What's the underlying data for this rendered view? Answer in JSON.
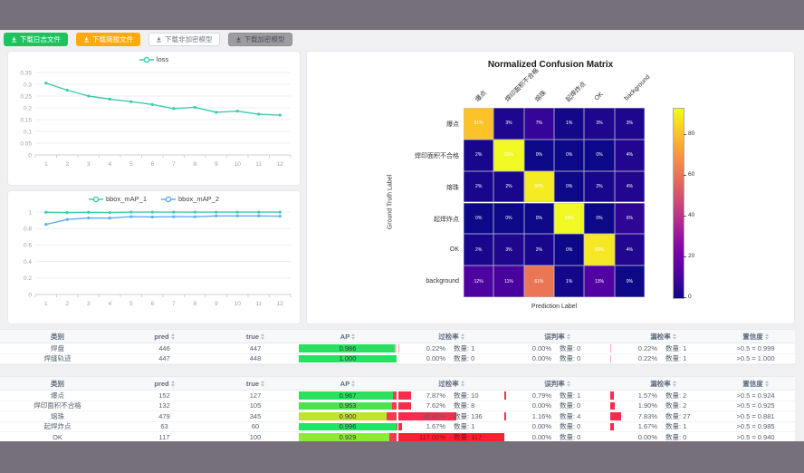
{
  "toolbar": {
    "buttons": [
      {
        "name": "log",
        "label": "下载日志文件",
        "style": "green"
      },
      {
        "name": "report",
        "label": "下载简报文件",
        "style": "orange"
      },
      {
        "name": "unencrypted-model",
        "label": "下载非加密模型",
        "style": "white"
      },
      {
        "name": "encrypted-model",
        "label": "下载加密模型",
        "style": "gray"
      }
    ]
  },
  "chart_data": [
    {
      "type": "line",
      "title": "loss",
      "x": [
        1,
        2,
        3,
        4,
        5,
        6,
        7,
        8,
        9,
        10,
        11,
        12
      ],
      "yticks": [
        0,
        0.05,
        0.1,
        0.15,
        0.2,
        0.25,
        0.3,
        0.35
      ],
      "legend_position": "top",
      "grid": true,
      "series": [
        {
          "name": "loss",
          "color": "#3ecbac",
          "values": [
            0.305,
            0.275,
            0.25,
            0.237,
            0.226,
            0.214,
            0.197,
            0.202,
            0.181,
            0.186,
            0.173,
            0.169
          ]
        }
      ]
    },
    {
      "type": "line",
      "title": "bbox_mAP",
      "x": [
        1,
        2,
        3,
        4,
        5,
        6,
        7,
        8,
        9,
        10,
        11,
        12
      ],
      "yticks": [
        0,
        0.2,
        0.4,
        0.6,
        0.8,
        1
      ],
      "legend_position": "top",
      "grid": true,
      "series": [
        {
          "name": "bbox_mAP_1",
          "color": "#3ecbac",
          "values": [
            0.997,
            0.993,
            0.997,
            0.994,
            0.999,
            0.999,
            0.999,
            0.999,
            0.999,
            0.999,
            0.999,
            0.999
          ]
        },
        {
          "name": "bbox_mAP_2",
          "color": "#5fabf5",
          "values": [
            0.85,
            0.91,
            0.928,
            0.927,
            0.944,
            0.94,
            0.944,
            0.943,
            0.953,
            0.953,
            0.953,
            0.95
          ]
        }
      ]
    },
    {
      "type": "heatmap",
      "title": "Normalized Confusion Matrix",
      "xlabel": "Prediction Label",
      "ylabel": "Ground Truth Label",
      "labels": [
        "爆点",
        "焊印面积不合格",
        "熔珠",
        "起焊炸点",
        "OK",
        "background"
      ],
      "values_pct": [
        [
          81,
          3,
          7,
          1,
          3,
          3
        ],
        [
          2,
          93,
          0,
          0,
          0,
          4
        ],
        [
          2,
          2,
          90,
          0,
          2,
          4
        ],
        [
          0,
          0,
          0,
          93,
          0,
          6
        ],
        [
          2,
          3,
          2,
          0,
          89,
          4
        ],
        [
          12,
          11,
          61,
          1,
          13,
          0
        ]
      ],
      "vmax": 93,
      "colorbar_ticks": [
        0,
        20,
        40,
        60,
        80
      ],
      "colormap": "plasma"
    }
  ],
  "tables": [
    {
      "headers": [
        {
          "label": "类别",
          "sort": false
        },
        {
          "label": "pred",
          "sort": true
        },
        {
          "label": "true",
          "sort": true
        },
        {
          "label": "AP",
          "sort": true
        },
        {
          "label": "过检率",
          "sort": true
        },
        {
          "label": "误判率",
          "sort": true
        },
        {
          "label": "漏检率",
          "sort": true
        },
        {
          "label": "置信度",
          "sort": true
        }
      ],
      "ap_rest_color": "#ffb7c5",
      "rows": [
        {
          "cls": "焊盘",
          "pred": "446",
          "true": "447",
          "ap": "0.986",
          "ap_color": "#2be060",
          "guo": {
            "pct": "0.22%",
            "cnt": "数量: 1",
            "bar": 0.012,
            "bar_color": "#f8a8bb"
          },
          "wu": {
            "pct": "0.00%",
            "cnt": "数量: 0",
            "bar": 0
          },
          "lou": {
            "pct": "0.22%",
            "cnt": "数量: 1",
            "bar": 0.012,
            "bar_color": "#f8a8bb"
          },
          "conf": ">0.5 = 0.999"
        },
        {
          "cls": "焊缝轨迹",
          "pred": "447",
          "true": "448",
          "ap": "1.000",
          "ap_color": "#1fe562",
          "guo": {
            "pct": "0.00%",
            "cnt": "数量: 0",
            "bar": 0
          },
          "wu": {
            "pct": "0.00%",
            "cnt": "数量: 0",
            "bar": 0
          },
          "lou": {
            "pct": "0.22%",
            "cnt": "数量: 1",
            "bar": 0.012,
            "bar_color": "#f8a8bb"
          },
          "conf": ">0.5 = 1.000"
        }
      ]
    },
    {
      "headers": [
        {
          "label": "类别",
          "sort": false
        },
        {
          "label": "pred",
          "sort": true
        },
        {
          "label": "true",
          "sort": true
        },
        {
          "label": "AP",
          "sort": true
        },
        {
          "label": "过检率",
          "sort": true
        },
        {
          "label": "误判率",
          "sort": true
        },
        {
          "label": "漏检率",
          "sort": true
        },
        {
          "label": "置信度",
          "sort": true
        }
      ],
      "ap_rest_color": "#fb3950",
      "rows": [
        {
          "cls": "爆点",
          "pred": "152",
          "true": "127",
          "ap": "0.967",
          "ap_color": "#2ae05e",
          "guo": {
            "pct": "7.87%",
            "cnt": "数量: 10",
            "bar": 0.12,
            "bar_color": "#fa2b4d"
          },
          "wu": {
            "pct": "0.79%",
            "cnt": "数量: 1",
            "bar": 0.015,
            "bar_color": "#fa2b4d"
          },
          "lou": {
            "pct": "1.57%",
            "cnt": "数量: 2",
            "bar": 0.035,
            "bar_color": "#fa2b4d"
          },
          "conf": ">0.5 = 0.924"
        },
        {
          "cls": "焊印面积不合格",
          "pred": "132",
          "true": "105",
          "ap": "0.953",
          "ap_color": "#4ae24f",
          "guo": {
            "pct": "7.62%",
            "cnt": "数量: 8",
            "bar": 0.12,
            "bar_color": "#fa2b4d"
          },
          "wu": {
            "pct": "0.00%",
            "cnt": "数量: 0",
            "bar": 0
          },
          "lou": {
            "pct": "1.90%",
            "cnt": "数量: 2",
            "bar": 0.04,
            "bar_color": "#fa2b4d"
          },
          "conf": ">0.5 = 0.925"
        },
        {
          "cls": "熔珠",
          "pred": "479",
          "true": "345",
          "ap": "0.900",
          "ap_color": "#bfe42c",
          "guo": {
            "pct": "39.42%",
            "cnt": "数量: 136",
            "bar": 0.55,
            "bar_color": "#fa2b4d"
          },
          "wu": {
            "pct": "1.16%",
            "cnt": "数量: 4",
            "bar": 0.02,
            "bar_color": "#fa2b4d"
          },
          "lou": {
            "pct": "7.83%",
            "cnt": "数量: 27",
            "bar": 0.1,
            "bar_color": "#fa2b4d"
          },
          "conf": ">0.5 = 0.881"
        },
        {
          "cls": "起焊炸点",
          "pred": "63",
          "true": "60",
          "ap": "0.996",
          "ap_color": "#1fe562",
          "guo": {
            "pct": "1.67%",
            "cnt": "数量: 1",
            "bar": 0.03,
            "bar_color": "#fa2b4d"
          },
          "wu": {
            "pct": "0.00%",
            "cnt": "数量: 0",
            "bar": 0
          },
          "lou": {
            "pct": "1.67%",
            "cnt": "数量: 1",
            "bar": 0.035,
            "bar_color": "#fa2b4d"
          },
          "conf": ">0.5 = 0.985"
        },
        {
          "cls": "OK",
          "pred": "117",
          "true": "100",
          "ap": "0.929",
          "ap_color": "#8fe838",
          "guo": {
            "pct": "117.00%",
            "cnt": "数量: 117",
            "bar": 1,
            "bar_color": "#fb1f33",
            "text_color": "#7c1220"
          },
          "wu": {
            "pct": "0.00%",
            "cnt": "数量: 0",
            "bar": 0
          },
          "lou": {
            "pct": "0.00%",
            "cnt": "数量: 0",
            "bar": 0
          },
          "conf": ">0.5 = 0.940"
        }
      ]
    }
  ]
}
